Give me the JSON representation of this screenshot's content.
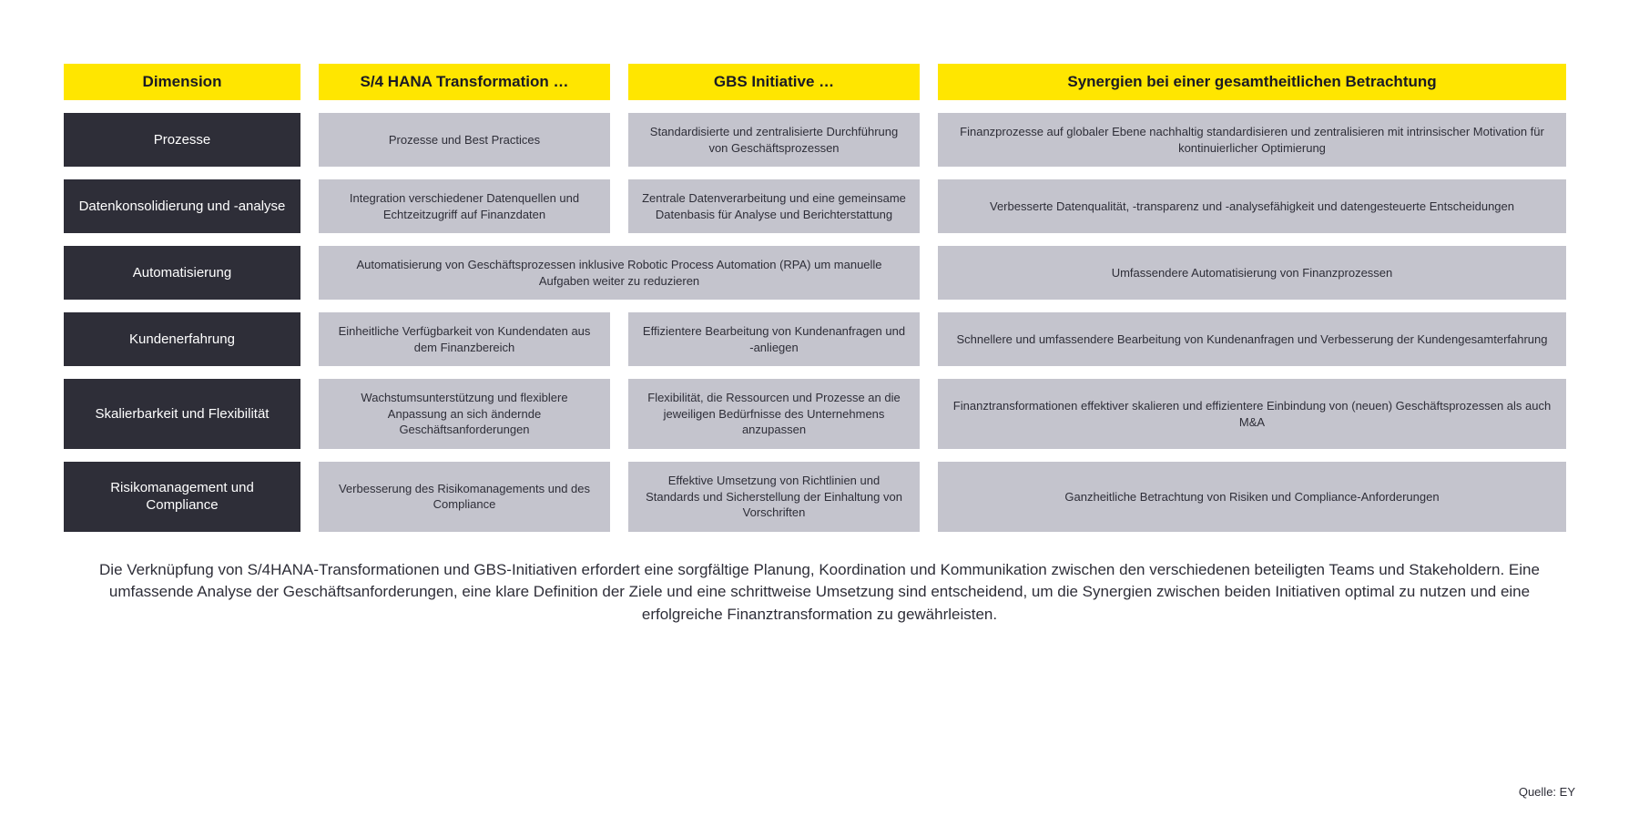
{
  "headers": {
    "dimension": "Dimension",
    "s4hana": "S/4 HANA Transformation …",
    "gbs": "GBS Initiative …",
    "synergy": "Synergien bei einer gesamtheitlichen Betrachtung"
  },
  "rows": [
    {
      "dim": "Prozesse",
      "s4": "Prozesse und Best Practices",
      "gbs": "Standardisierte und zentralisierte Durchführung von Geschäftsprozessen",
      "syn": "Finanzprozesse auf globaler Ebene nachhaltig standardisieren und zentralisieren mit intrinsischer Motivation für kontinuierlicher Optimierung"
    },
    {
      "dim": "Datenkonsolidierung und -analyse",
      "s4": "Integration verschiedener Datenquellen und Echtzeitzugriff auf Finanzdaten",
      "gbs": "Zentrale Datenverarbeitung und eine gemeinsame Datenbasis für Analyse und Berichterstattung",
      "syn": "Verbesserte Datenqualität, -transparenz und -analysefähigkeit und datengesteuerte Entscheidungen"
    },
    {
      "dim": "Automatisierung",
      "merged": "Automatisierung von Geschäftsprozessen inklusive Robotic Process Automation (RPA) um manuelle Aufgaben weiter zu reduzieren",
      "syn": "Umfassendere Automatisierung von Finanzprozessen"
    },
    {
      "dim": "Kundenerfahrung",
      "s4": "Einheitliche Verfügbarkeit von Kundendaten aus dem Finanzbereich",
      "gbs": "Effizientere Bearbeitung von Kundenanfragen und -anliegen",
      "syn": "Schnellere und umfassendere Bearbeitung von Kundenanfragen und Verbesserung der Kundengesamterfahrung"
    },
    {
      "dim": "Skalierbarkeit und Flexibilität",
      "s4": "Wachstumsunterstützung und flexiblere Anpassung an sich ändernde Geschäftsanforderungen",
      "gbs": "Flexibilität, die Ressourcen und Prozesse an die jeweiligen Bedürfnisse des Unternehmens anzupassen",
      "syn": "Finanztransformationen effektiver skalieren und effizientere Einbindung von (neuen) Geschäftsprozessen als auch M&A"
    },
    {
      "dim": "Risikomanagement und Compliance",
      "s4": "Verbesserung des Risikomanagements und des Compliance",
      "gbs": "Effektive Umsetzung von Richtlinien und Standards und Sicherstellung der Einhaltung von Vorschriften",
      "syn": "Ganzheitliche Betrachtung von Risiken und Compliance-Anforderungen"
    }
  ],
  "summary": "Die Verknüpfung von S/4HANA-Transformationen und GBS-Initiativen erfordert eine sorgfältige Planung, Koordination und Kommunikation zwischen den verschiedenen beteiligten Teams und Stakeholdern. Eine umfassende Analyse der Geschäftsanforderungen, eine klare Definition der Ziele und eine schrittweise Umsetzung sind entscheidend, um die Synergien zwischen beiden Initiativen optimal zu nutzen und eine erfolgreiche Finanztransformation zu gewährleisten.",
  "source": "Quelle: EY",
  "colors": {
    "header_bg": "#ffe600",
    "dim_bg": "#2e2e38",
    "body_bg": "#c4c4cd",
    "text_dark": "#2e2e38",
    "text_light": "#ffffff"
  }
}
